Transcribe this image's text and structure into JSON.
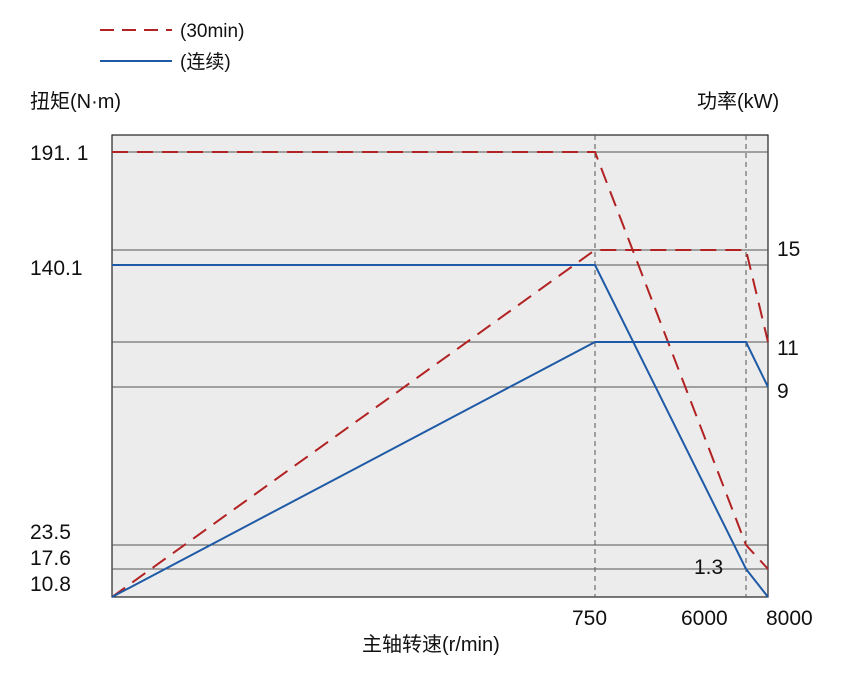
{
  "chart_data": {
    "type": "line",
    "legend": [
      {
        "label": "(30min)",
        "color": "#b22222",
        "style": "dashed"
      },
      {
        "label": "(连续)",
        "color": "#1f5aa6",
        "style": "solid"
      }
    ],
    "legend_position": "top-left",
    "ylabel_left": "扭矩(N·m)",
    "ylabel_right": "功率(kW)",
    "xlabel": "主轴转速(r/min)",
    "x_ticks": [
      "750",
      "6000",
      "8000"
    ],
    "y_left_ticks": [
      "191. 1",
      "140.1",
      "23.5",
      "17.6",
      "10.8"
    ],
    "y_right_ticks": [
      "15",
      "11",
      "9",
      "1.3"
    ],
    "series": [
      {
        "name": "(30min)",
        "quantity": "torque",
        "x": [
          0,
          750,
          6000,
          8000
        ],
        "y": [
          191.1,
          191.1,
          23.5,
          17.6
        ]
      },
      {
        "name": "(30min)",
        "quantity": "power",
        "x": [
          0,
          750,
          6000,
          8000
        ],
        "y": [
          0,
          15,
          15,
          11
        ]
      },
      {
        "name": "(连续)",
        "quantity": "torque",
        "x": [
          0,
          750,
          6000,
          8000
        ],
        "y": [
          140.1,
          140.1,
          17.6,
          10.8
        ]
      },
      {
        "name": "(连续)",
        "quantity": "power",
        "x": [
          0,
          750,
          6000,
          8000
        ],
        "y": [
          0,
          11,
          11,
          9
        ]
      }
    ],
    "grid": true,
    "colors": {
      "plot_bg": "#ececec",
      "series_30min": "#b22222",
      "series_cont": "#1f5aa6"
    }
  }
}
